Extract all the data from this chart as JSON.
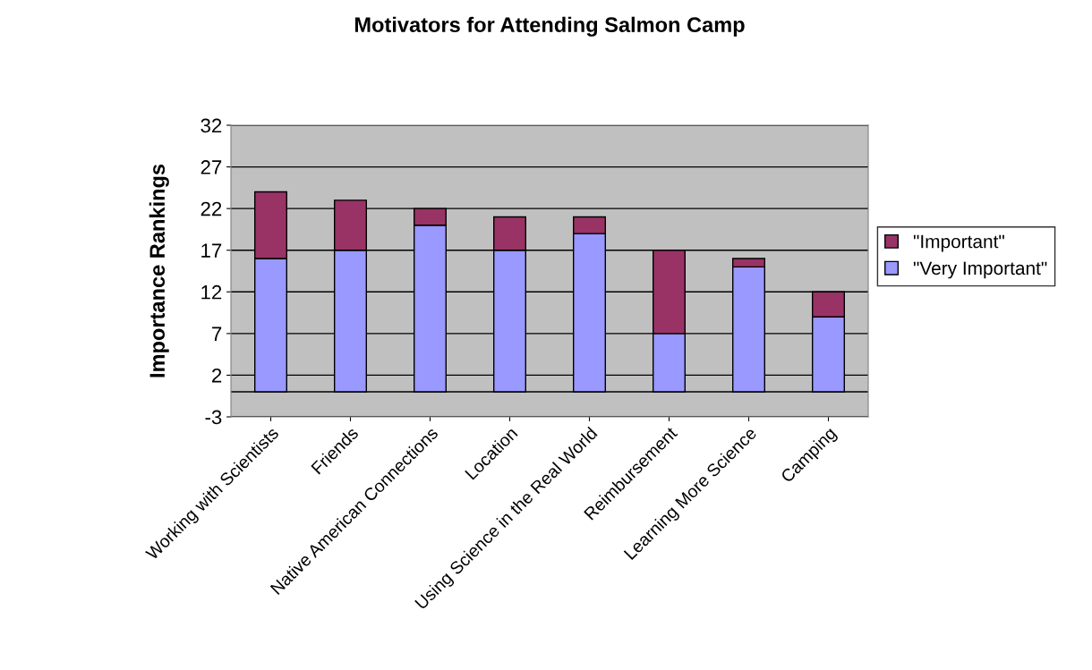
{
  "chart_data": {
    "type": "bar",
    "title": "Motivators for Attending Salmon Camp",
    "ylabel": "Importance Rankings",
    "categories": [
      "Working with Scientists",
      "Friends",
      "Native American Connections",
      "Location",
      "Using Science in the Real World",
      "Reimbursement",
      "Learning More Science",
      "Camping"
    ],
    "series": [
      {
        "name": "\"Very Important\"",
        "color": "#9999ff",
        "values": [
          16,
          17,
          20,
          17,
          19,
          7,
          15,
          9
        ]
      },
      {
        "name": "\"Important\"",
        "color": "#993366",
        "values": [
          8,
          6,
          2,
          4,
          2,
          10,
          1,
          3
        ]
      }
    ],
    "stacked": true,
    "ylim": [
      -3,
      32
    ],
    "yticks": [
      -3,
      2,
      7,
      12,
      17,
      22,
      27,
      32
    ],
    "grid": "y",
    "legend": "right",
    "ref_lines": [
      {
        "axis": "y",
        "value": 0,
        "color": "#000000"
      }
    ]
  }
}
